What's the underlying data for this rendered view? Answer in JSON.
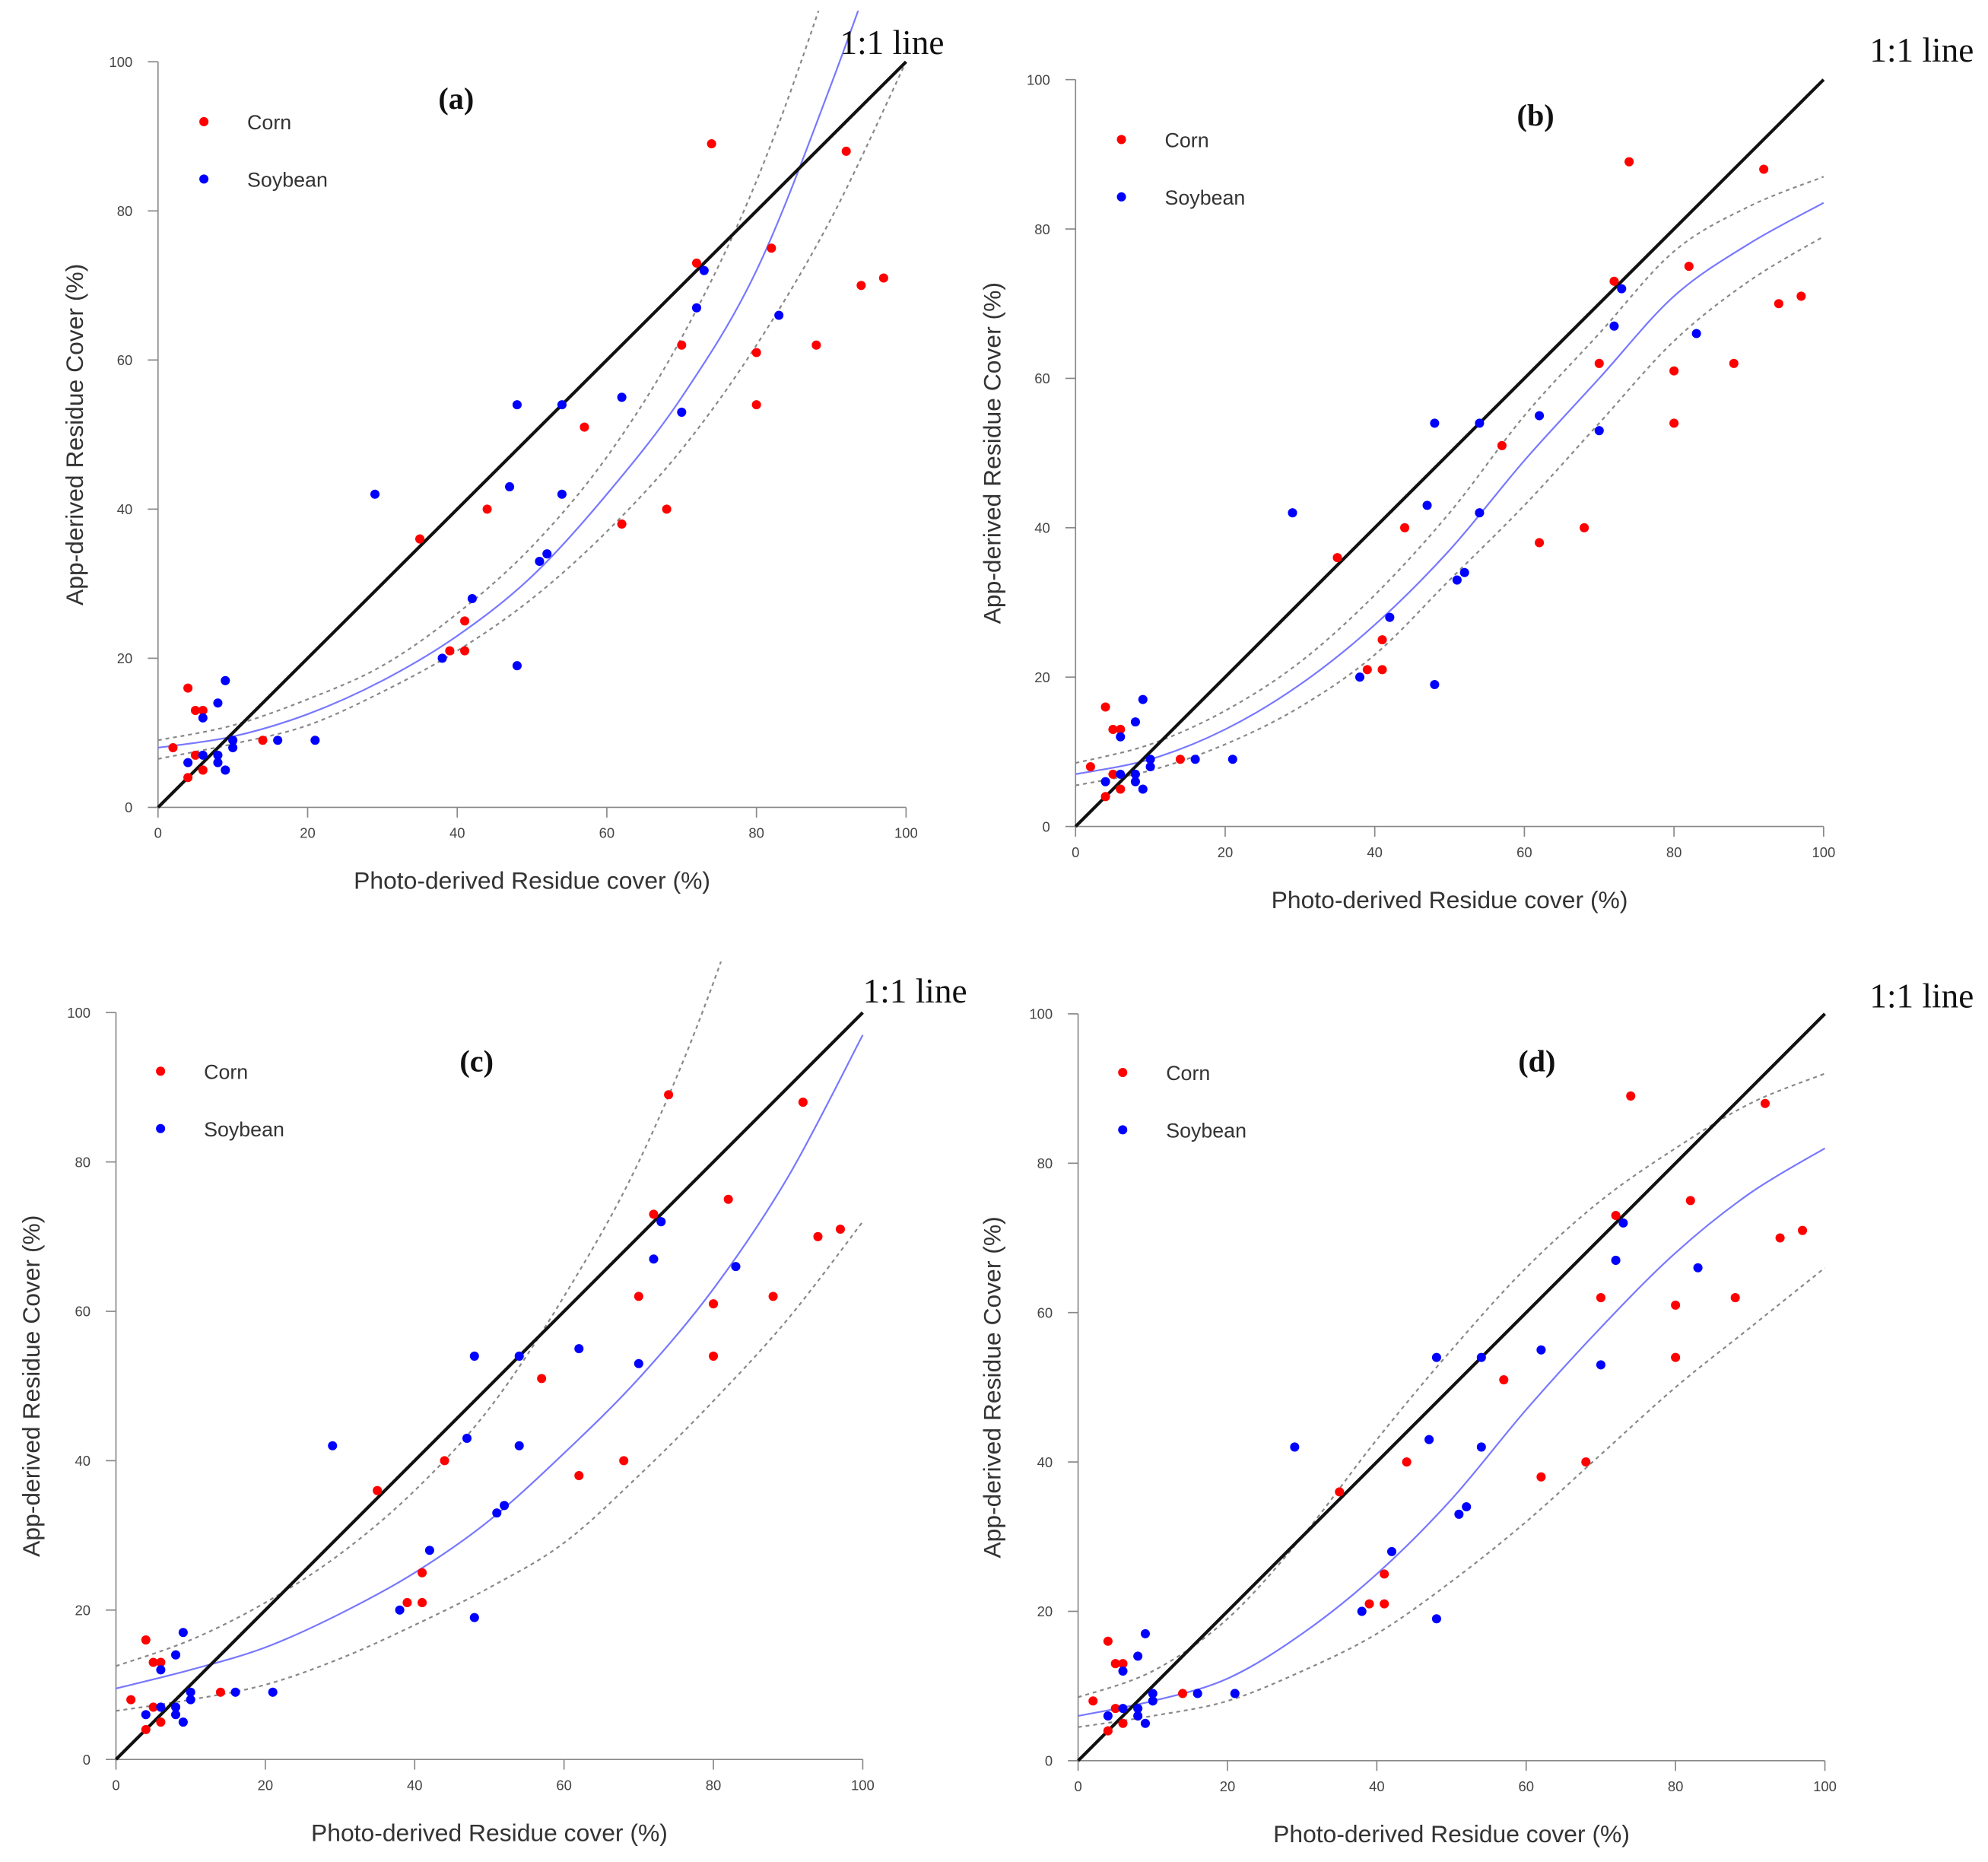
{
  "chart_data": {
    "type": "scatter",
    "xlabel": "Photo-derived Residue cover (%)",
    "ylabel": "App-derived Residue Cover (%)",
    "xlim": [
      0,
      100
    ],
    "ylim": [
      0,
      100
    ],
    "xticks": [
      "0",
      "20",
      "40",
      "60",
      "80",
      "100"
    ],
    "yticks": [
      "0",
      "20",
      "40",
      "60",
      "80",
      "100"
    ],
    "legend_placement": "top-left",
    "reference_line_label": "1:1 line",
    "series": [
      {
        "name": "Corn",
        "color": "#ff0000",
        "points": [
          [
            74,
            89
          ],
          [
            92,
            88
          ],
          [
            82,
            75
          ],
          [
            72,
            73
          ],
          [
            94,
            70
          ],
          [
            97,
            71
          ],
          [
            70,
            62
          ],
          [
            80,
            61
          ],
          [
            88,
            62
          ],
          [
            80,
            54
          ],
          [
            57,
            51
          ],
          [
            44,
            40
          ],
          [
            68,
            40
          ],
          [
            62,
            38
          ],
          [
            35,
            36
          ],
          [
            41,
            25
          ],
          [
            39,
            21
          ],
          [
            41,
            21
          ],
          [
            4,
            16
          ],
          [
            5,
            13
          ],
          [
            6,
            13
          ],
          [
            14,
            9
          ],
          [
            2,
            8
          ],
          [
            5,
            7
          ],
          [
            6,
            5
          ],
          [
            4,
            4
          ]
        ]
      },
      {
        "name": "Soybean",
        "color": "#0000ff",
        "points": [
          [
            73,
            72
          ],
          [
            72,
            67
          ],
          [
            83,
            66
          ],
          [
            48,
            54
          ],
          [
            54,
            54
          ],
          [
            62,
            55
          ],
          [
            70,
            53
          ],
          [
            29,
            42
          ],
          [
            47,
            43
          ],
          [
            54,
            42
          ],
          [
            51,
            33
          ],
          [
            52,
            34
          ],
          [
            42,
            28
          ],
          [
            38,
            20
          ],
          [
            48,
            19
          ],
          [
            9,
            17
          ],
          [
            8,
            14
          ],
          [
            6,
            12
          ],
          [
            10,
            9
          ],
          [
            10,
            8
          ],
          [
            16,
            9
          ],
          [
            21,
            9
          ],
          [
            6,
            7
          ],
          [
            8,
            7
          ],
          [
            4,
            6
          ],
          [
            8,
            6
          ],
          [
            9,
            5
          ]
        ]
      }
    ],
    "curve_x": [
      0,
      10,
      20,
      30,
      40,
      50,
      60,
      70,
      80,
      90,
      100
    ],
    "fit_color": "#7777ff",
    "interval_color": "#888888",
    "panels": [
      {
        "label": "(a)",
        "fit": [
          8,
          9.5,
          12.5,
          17,
          23,
          31,
          42,
          55,
          72,
          97,
          125
        ],
        "upper": [
          9,
          11,
          14.5,
          19,
          26,
          35,
          47,
          63,
          84,
          112,
          145
        ],
        "lower": [
          6.5,
          8.5,
          11,
          15.5,
          21,
          28,
          37,
          48,
          62,
          79,
          100
        ]
      },
      {
        "label": "(b)",
        "fit": [
          7,
          9,
          13,
          19,
          27,
          37,
          49,
          60,
          71,
          78,
          83.5
        ],
        "upper": [
          8.5,
          11,
          15.5,
          22,
          31,
          42,
          55,
          66,
          77,
          83,
          87
        ],
        "lower": [
          5.5,
          7.5,
          11,
          16,
          23,
          33,
          43,
          54,
          65,
          73,
          79
        ]
      },
      {
        "label": "(c)",
        "fit": [
          9.5,
          12,
          15,
          19.5,
          25,
          32,
          41,
          51,
          63,
          78,
          97
        ],
        "upper": [
          12.5,
          16,
          21,
          27.5,
          36,
          47,
          62,
          80,
          104,
          135,
          170
        ],
        "lower": [
          6.5,
          8,
          10,
          13.5,
          18,
          23,
          29,
          38,
          48,
          59,
          72
        ]
      },
      {
        "label": "(d)",
        "fit": [
          6,
          8,
          11,
          17,
          25,
          35,
          47,
          58,
          68,
          76,
          82
        ],
        "upper": [
          8.5,
          12,
          19,
          30,
          43,
          55,
          66,
          75,
          82,
          88,
          92
        ],
        "lower": [
          4.5,
          6,
          8,
          12,
          17,
          24,
          32,
          41,
          50,
          58,
          66
        ]
      }
    ]
  }
}
